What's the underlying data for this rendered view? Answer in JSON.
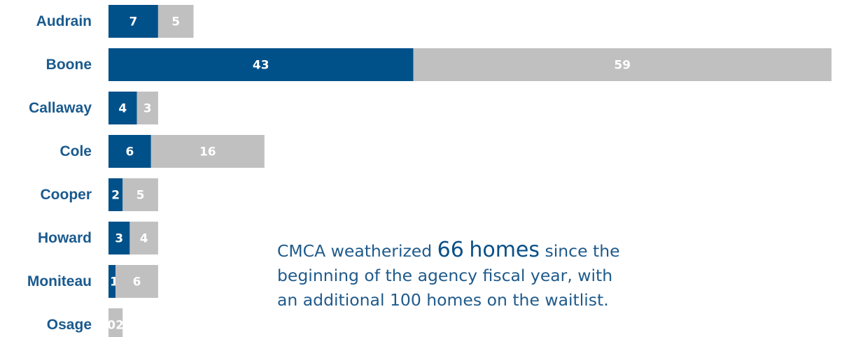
{
  "chart_data": {
    "type": "bar",
    "orientation": "horizontal",
    "stacked": true,
    "categories": [
      "Audrain",
      "Boone",
      "Callaway",
      "Cole",
      "Cooper",
      "Howard",
      "Moniteau",
      "Osage"
    ],
    "series": [
      {
        "values": [
          7,
          43,
          4,
          6,
          2,
          3,
          1,
          0
        ],
        "color": "#00518a"
      },
      {
        "values": [
          5,
          59,
          3,
          16,
          5,
          4,
          6,
          2
        ],
        "color": "#c0c0c0"
      }
    ],
    "bar_labels": [
      [
        "7",
        "43",
        "4",
        "6",
        "2",
        "3",
        "1",
        ""
      ],
      [
        "5",
        "59",
        "3",
        "16",
        "5",
        "4",
        "6",
        "02"
      ]
    ],
    "xlim": [
      0,
      102
    ],
    "legend": "none",
    "grid": false,
    "category_label_color": "#1a5a8e"
  },
  "annotation": {
    "text_before": "CMCA weatherized ",
    "highlight_number": "66",
    "highlight_word": "homes",
    "text_line1_rest": " since the",
    "text_line2": "beginning of the agency fiscal year, with",
    "text_line3": "an additional 100 homes on the waitlist."
  }
}
